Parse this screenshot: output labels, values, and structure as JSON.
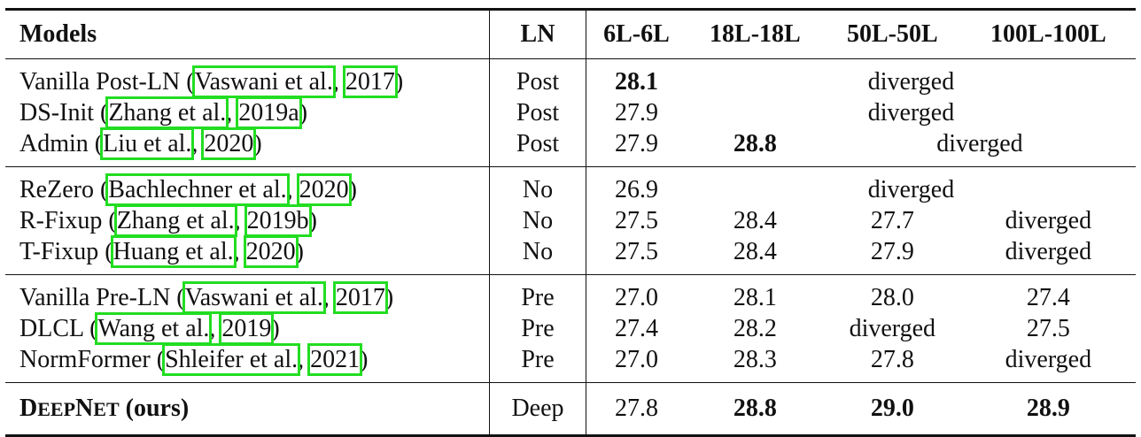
{
  "headers": {
    "models": "Models",
    "ln": "LN",
    "c1": "6L-6L",
    "c2": "18L-18L",
    "c3": "50L-50L",
    "c4": "100L-100L"
  },
  "groups": [
    {
      "rows": [
        {
          "prefix": "Vanilla Post-LN (",
          "cite_author": "Vaswani et al.",
          "sep": ", ",
          "cite_year": "2017",
          "suffix": ")",
          "ln": "Post",
          "v1": "28.1",
          "diverged": "diverged"
        },
        {
          "prefix": "DS-Init (",
          "cite_author": "Zhang et al.",
          "sep": ", ",
          "cite_year": "2019a",
          "suffix": ")",
          "ln": "Post",
          "v1": "27.9",
          "diverged": "diverged"
        },
        {
          "prefix": "Admin (",
          "cite_author": "Liu et al.",
          "sep": ", ",
          "cite_year": "2020",
          "suffix": ")",
          "ln": "Post",
          "v1": "27.9",
          "v2": "28.8",
          "diverged": "diverged"
        }
      ]
    },
    {
      "rows": [
        {
          "prefix": "ReZero (",
          "cite_author": "Bachlechner et al.",
          "sep": ", ",
          "cite_year": "2020",
          "suffix": ")",
          "ln": "No",
          "v1": "26.9",
          "diverged": "diverged"
        },
        {
          "prefix": "R-Fixup (",
          "cite_author": "Zhang et al.",
          "sep": ", ",
          "cite_year": "2019b",
          "suffix": ")",
          "ln": "No",
          "v1": "27.5",
          "v2": "28.4",
          "v3": "27.7",
          "v4": "diverged"
        },
        {
          "prefix": "T-Fixup (",
          "cite_author": "Huang et al.",
          "sep": ", ",
          "cite_year": "2020",
          "suffix": ")",
          "ln": "No",
          "v1": "27.5",
          "v2": "28.4",
          "v3": "27.9",
          "v4": "diverged"
        }
      ]
    },
    {
      "rows": [
        {
          "prefix": "Vanilla Pre-LN (",
          "cite_author": "Vaswani et al.",
          "sep": ", ",
          "cite_year": "2017",
          "suffix": ")",
          "ln": "Pre",
          "v1": "27.0",
          "v2": "28.1",
          "v3": "28.0",
          "v4": "27.4"
        },
        {
          "prefix": "DLCL (",
          "cite_author": "Wang et al.",
          "sep": ", ",
          "cite_year": "2019",
          "suffix": ")",
          "ln": "Pre",
          "v1": "27.4",
          "v2": "28.2",
          "v3": "diverged",
          "v4": "27.5"
        },
        {
          "prefix": "NormFormer (",
          "cite_author": "Shleifer et al.",
          "sep": ", ",
          "cite_year": "2021",
          "suffix": ")",
          "ln": "Pre",
          "v1": "27.0",
          "v2": "28.3",
          "v3": "27.8",
          "v4": "diverged"
        }
      ]
    }
  ],
  "ours": {
    "d": "D",
    "eep": "EEP",
    "n": "N",
    "et": "ET",
    "rest": " (ours)",
    "ln": "Deep",
    "v1": "27.8",
    "v2": "28.8",
    "v3": "29.0",
    "v4": "28.9"
  },
  "colors": {
    "citation_box": "#22dd22",
    "text": "#111111"
  }
}
